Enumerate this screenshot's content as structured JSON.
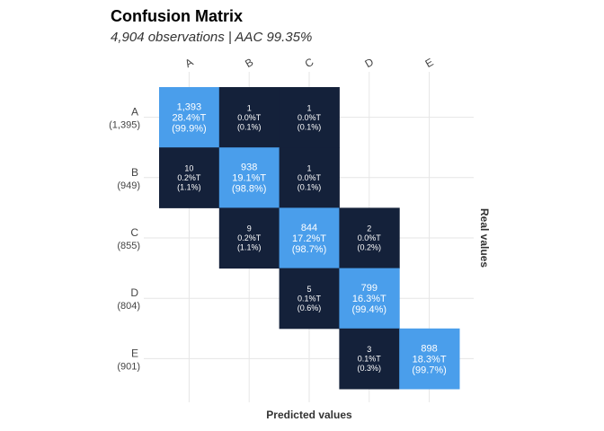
{
  "header": {
    "title": "Confusion Matrix",
    "subtitle": "4,904 observations | AAC 99.35%"
  },
  "axis": {
    "xlabel": "Predicted values",
    "ylabel": "Real values"
  },
  "colors": {
    "diagonal": "#4a9eeb",
    "off_diagonal": "#14213a",
    "grid": "#e6e6e6",
    "cell_text": "#ffffff",
    "tick_text": "#444444"
  },
  "chart_data": {
    "type": "heatmap",
    "title": "Confusion Matrix",
    "subtitle": "4,904 observations | AAC 99.35%",
    "xlabel": "Predicted values",
    "ylabel": "Real values",
    "x_categories": [
      "A",
      "B",
      "C",
      "D",
      "E"
    ],
    "y_categories": [
      "A",
      "B",
      "C",
      "D",
      "E"
    ],
    "row_totals": [
      "(1,395)",
      "(949)",
      "(855)",
      "(804)",
      "(901)"
    ],
    "grid": true,
    "cells": [
      {
        "real": "A",
        "predicted": "A",
        "count": "1,393",
        "pct_total": "28.4%T",
        "pct_row": "(99.9%)",
        "diagonal": true
      },
      {
        "real": "A",
        "predicted": "B",
        "count": "1",
        "pct_total": "0.0%T",
        "pct_row": "(0.1%)",
        "diagonal": false
      },
      {
        "real": "A",
        "predicted": "C",
        "count": "1",
        "pct_total": "0.0%T",
        "pct_row": "(0.1%)",
        "diagonal": false
      },
      {
        "real": "B",
        "predicted": "A",
        "count": "10",
        "pct_total": "0.2%T",
        "pct_row": "(1.1%)",
        "diagonal": false
      },
      {
        "real": "B",
        "predicted": "B",
        "count": "938",
        "pct_total": "19.1%T",
        "pct_row": "(98.8%)",
        "diagonal": true
      },
      {
        "real": "B",
        "predicted": "C",
        "count": "1",
        "pct_total": "0.0%T",
        "pct_row": "(0.1%)",
        "diagonal": false
      },
      {
        "real": "C",
        "predicted": "B",
        "count": "9",
        "pct_total": "0.2%T",
        "pct_row": "(1.1%)",
        "diagonal": false
      },
      {
        "real": "C",
        "predicted": "C",
        "count": "844",
        "pct_total": "17.2%T",
        "pct_row": "(98.7%)",
        "diagonal": true
      },
      {
        "real": "C",
        "predicted": "D",
        "count": "2",
        "pct_total": "0.0%T",
        "pct_row": "(0.2%)",
        "diagonal": false
      },
      {
        "real": "D",
        "predicted": "C",
        "count": "5",
        "pct_total": "0.1%T",
        "pct_row": "(0.6%)",
        "diagonal": false
      },
      {
        "real": "D",
        "predicted": "D",
        "count": "799",
        "pct_total": "16.3%T",
        "pct_row": "(99.4%)",
        "diagonal": true
      },
      {
        "real": "E",
        "predicted": "D",
        "count": "3",
        "pct_total": "0.1%T",
        "pct_row": "(0.3%)",
        "diagonal": false
      },
      {
        "real": "E",
        "predicted": "E",
        "count": "898",
        "pct_total": "18.3%T",
        "pct_row": "(99.7%)",
        "diagonal": true
      }
    ]
  }
}
